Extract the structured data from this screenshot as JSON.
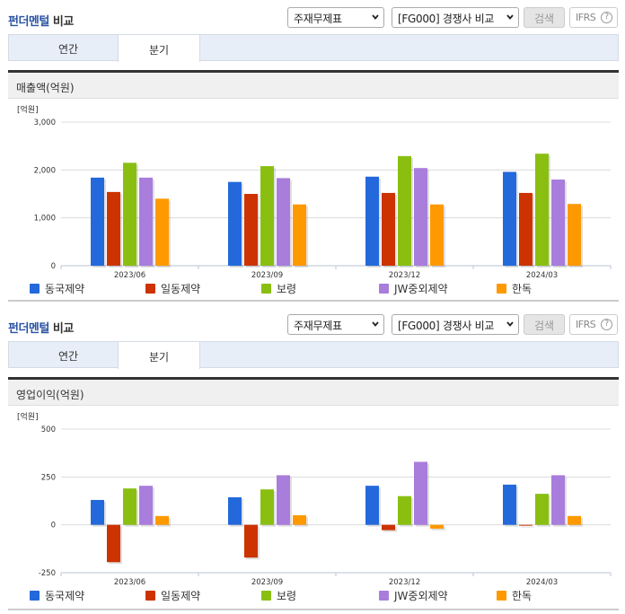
{
  "header": {
    "title_blue": "펀더멘털",
    "title_dark": "비교",
    "select_statement": "주재무제표",
    "select_group": "[FG000] 경쟁사 비교",
    "search_button": "검색",
    "ifrs_button": "IFRS",
    "help_icon": "?"
  },
  "tabs": [
    {
      "label": "연간",
      "active": false
    },
    {
      "label": "분기",
      "active": true
    }
  ],
  "legend": [
    {
      "label": "동국제약",
      "color": "#2469db"
    },
    {
      "label": "일동제약",
      "color": "#cc3300"
    },
    {
      "label": "보령",
      "color": "#8abf12"
    },
    {
      "label": "JW중외제약",
      "color": "#a97ddb"
    },
    {
      "label": "한독",
      "color": "#ff9900"
    }
  ],
  "sections": [
    {
      "title": "매출액(억원)",
      "unit": "[억원]"
    },
    {
      "title": "영업이익(억원)",
      "unit": "[억원]"
    }
  ],
  "chart_data": [
    {
      "type": "bar",
      "title": "매출액(억원)",
      "ylabel": "[억원]",
      "xlabel": "",
      "categories": [
        "2023/06",
        "2023/09",
        "2023/12",
        "2024/03"
      ],
      "ylim": [
        0,
        3000
      ],
      "yticks": [
        0,
        1000,
        2000,
        3000
      ],
      "ytick_labels": [
        "0",
        "1,000",
        "2,000",
        "3,000"
      ],
      "grid": true,
      "legend_position": "bottom",
      "series": [
        {
          "name": "동국제약",
          "color": "#2469db",
          "values": [
            1840,
            1750,
            1860,
            1960
          ]
        },
        {
          "name": "일동제약",
          "color": "#cc3300",
          "values": [
            1540,
            1500,
            1520,
            1520
          ]
        },
        {
          "name": "보령",
          "color": "#8abf12",
          "values": [
            2150,
            2080,
            2290,
            2340
          ]
        },
        {
          "name": "JW중외제약",
          "color": "#a97ddb",
          "values": [
            1840,
            1830,
            2040,
            1800
          ]
        },
        {
          "name": "한독",
          "color": "#ff9900",
          "values": [
            1400,
            1280,
            1280,
            1290
          ]
        }
      ]
    },
    {
      "type": "bar",
      "title": "영업이익(억원)",
      "ylabel": "[억원]",
      "xlabel": "",
      "categories": [
        "2023/06",
        "2023/09",
        "2023/12",
        "2024/03"
      ],
      "ylim": [
        -250,
        500
      ],
      "yticks": [
        -250,
        0,
        250,
        500
      ],
      "ytick_labels": [
        "-250",
        "0",
        "250",
        "500"
      ],
      "grid": true,
      "legend_position": "bottom",
      "series": [
        {
          "name": "동국제약",
          "color": "#2469db",
          "values": [
            130,
            144,
            204,
            210
          ]
        },
        {
          "name": "일동제약",
          "color": "#cc3300",
          "values": [
            -195,
            -171,
            -28,
            -4
          ]
        },
        {
          "name": "보령",
          "color": "#8abf12",
          "values": [
            190,
            185,
            150,
            162
          ]
        },
        {
          "name": "JW중외제약",
          "color": "#a97ddb",
          "values": [
            204,
            259,
            329,
            259
          ]
        },
        {
          "name": "한독",
          "color": "#ff9900",
          "values": [
            46,
            50,
            -20,
            46
          ]
        }
      ]
    }
  ]
}
